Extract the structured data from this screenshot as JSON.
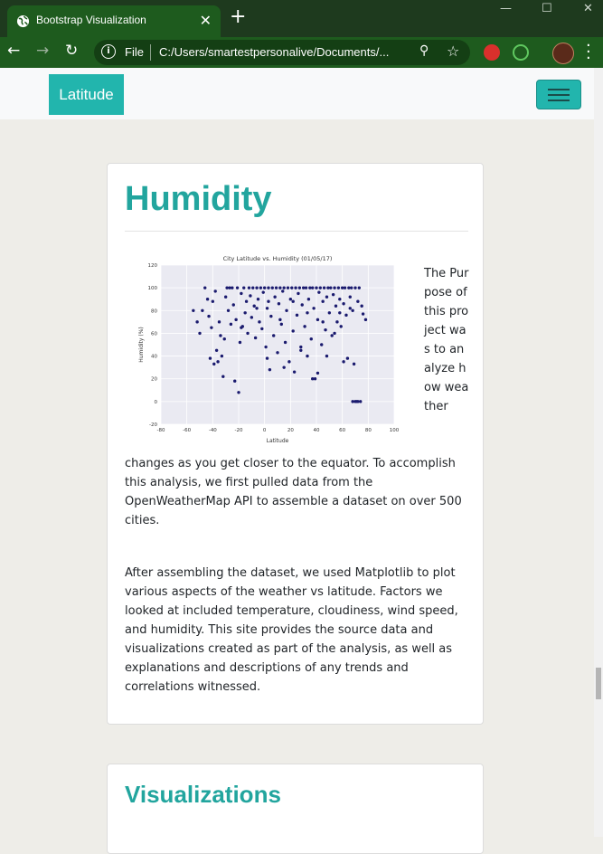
{
  "browser": {
    "tab_title": "Bootstrap Visualization",
    "tab_close": "✕",
    "new_tab": "+",
    "scheme": "File",
    "url": "C:/Users/smartestpersonalive/Documents/...",
    "window_controls": {
      "minimize": "—",
      "maximize": "☐",
      "close": "✕"
    }
  },
  "navbar": {
    "brand": "Latitude"
  },
  "card1": {
    "heading": "Humidity",
    "paragraph1_narrow": "The Purpose of this project was to analyze how weather",
    "paragraph1_rest": "changes as you get closer to the equator. To accomplish this analysis, we first pulled data from the OpenWeatherMap API to assemble a dataset on over 500 cities.",
    "paragraph2": "After assembling the dataset, we used Matplotlib to plot various aspects of the weather vs latitude. Factors we looked at included temperature, cloudiness, wind speed, and humidity. This site provides the source data and visualizations created as part of the analysis, as well as explanations and descriptions of any trends and correlations witnessed."
  },
  "card2": {
    "heading": "Visualizations"
  },
  "chart_data": {
    "type": "scatter",
    "title": "City Latitude vs. Humidity (01/05/17)",
    "xlabel": "Latitude",
    "ylabel": "Humidity (%)",
    "xlim": [
      -80,
      100
    ],
    "ylim": [
      -20,
      120
    ],
    "xticks": [
      -80,
      -60,
      -40,
      -20,
      0,
      20,
      40,
      60,
      80,
      100
    ],
    "yticks": [
      -20,
      0,
      20,
      40,
      60,
      80,
      100,
      120
    ],
    "grid": true,
    "point_color": "#1a1a6e",
    "series": [
      {
        "points": [
          [
            -55,
            80
          ],
          [
            -52,
            70
          ],
          [
            -50,
            60
          ],
          [
            -46,
            100
          ],
          [
            -44,
            90
          ],
          [
            -43,
            75
          ],
          [
            -41,
            65
          ],
          [
            -40,
            88
          ],
          [
            -38,
            97
          ],
          [
            -37,
            45
          ],
          [
            -36,
            35
          ],
          [
            -35,
            70
          ],
          [
            -34,
            58
          ],
          [
            -33,
            40
          ],
          [
            -32,
            22
          ],
          [
            -31,
            55
          ],
          [
            -30,
            92
          ],
          [
            -28,
            80
          ],
          [
            -27,
            100
          ],
          [
            -26,
            68
          ],
          [
            -25,
            100
          ],
          [
            -24,
            85
          ],
          [
            -23,
            18
          ],
          [
            -22,
            72
          ],
          [
            -21,
            100
          ],
          [
            -20,
            8
          ],
          [
            -19,
            52
          ],
          [
            -18,
            95
          ],
          [
            -17,
            66
          ],
          [
            -16,
            100
          ],
          [
            -15,
            78
          ],
          [
            -14,
            88
          ],
          [
            -13,
            60
          ],
          [
            -12,
            100
          ],
          [
            -11,
            93
          ],
          [
            -10,
            74
          ],
          [
            -9,
            100
          ],
          [
            -8,
            84
          ],
          [
            -7,
            56
          ],
          [
            -6,
            100
          ],
          [
            -5,
            90
          ],
          [
            -4,
            70
          ],
          [
            -3,
            100
          ],
          [
            -2,
            64
          ],
          [
            -1,
            96
          ],
          [
            0,
            100
          ],
          [
            1,
            48
          ],
          [
            2,
            82
          ],
          [
            3,
            100
          ],
          [
            4,
            28
          ],
          [
            5,
            75
          ],
          [
            6,
            100
          ],
          [
            7,
            58
          ],
          [
            8,
            92
          ],
          [
            9,
            100
          ],
          [
            10,
            43
          ],
          [
            11,
            86
          ],
          [
            12,
            100
          ],
          [
            13,
            68
          ],
          [
            14,
            97
          ],
          [
            15,
            100
          ],
          [
            16,
            52
          ],
          [
            17,
            80
          ],
          [
            18,
            100
          ],
          [
            19,
            35
          ],
          [
            20,
            90
          ],
          [
            21,
            100
          ],
          [
            22,
            62
          ],
          [
            23,
            26
          ],
          [
            24,
            100
          ],
          [
            25,
            76
          ],
          [
            26,
            95
          ],
          [
            27,
            100
          ],
          [
            28,
            48
          ],
          [
            29,
            85
          ],
          [
            30,
            100
          ],
          [
            31,
            66
          ],
          [
            32,
            100
          ],
          [
            33,
            40
          ],
          [
            34,
            90
          ],
          [
            35,
            100
          ],
          [
            36,
            55
          ],
          [
            37,
            100
          ],
          [
            38,
            82
          ],
          [
            39,
            20
          ],
          [
            40,
            100
          ],
          [
            41,
            72
          ],
          [
            42,
            96
          ],
          [
            43,
            100
          ],
          [
            44,
            50
          ],
          [
            45,
            88
          ],
          [
            46,
            100
          ],
          [
            47,
            63
          ],
          [
            48,
            92
          ],
          [
            49,
            100
          ],
          [
            50,
            78
          ],
          [
            51,
            100
          ],
          [
            52,
            58
          ],
          [
            53,
            94
          ],
          [
            54,
            100
          ],
          [
            55,
            84
          ],
          [
            56,
            70
          ],
          [
            57,
            100
          ],
          [
            58,
            90
          ],
          [
            59,
            66
          ],
          [
            60,
            100
          ],
          [
            61,
            86
          ],
          [
            62,
            100
          ],
          [
            63,
            76
          ],
          [
            64,
            38
          ],
          [
            65,
            100
          ],
          [
            66,
            92
          ],
          [
            67,
            100
          ],
          [
            68,
            80
          ],
          [
            69,
            33
          ],
          [
            70,
            100
          ],
          [
            71,
            0
          ],
          [
            72,
            88
          ],
          [
            73,
            100
          ],
          [
            74,
            0
          ],
          [
            75,
            84
          ],
          [
            76,
            77
          ],
          [
            78,
            72
          ],
          [
            -48,
            80
          ],
          [
            -29,
            100
          ],
          [
            -18,
            65
          ],
          [
            -6,
            82
          ],
          [
            3,
            88
          ],
          [
            12,
            72
          ],
          [
            22,
            88
          ],
          [
            33,
            78
          ],
          [
            45,
            70
          ],
          [
            58,
            78
          ],
          [
            66,
            82
          ],
          [
            70,
            0
          ],
          [
            68,
            0
          ],
          [
            72,
            0
          ],
          [
            -42,
            38
          ],
          [
            -39,
            33
          ],
          [
            2,
            38
          ],
          [
            15,
            30
          ],
          [
            28,
            45
          ],
          [
            37,
            20
          ],
          [
            41,
            25
          ],
          [
            54,
            60
          ],
          [
            61,
            35
          ],
          [
            48,
            40
          ]
        ]
      }
    ]
  }
}
